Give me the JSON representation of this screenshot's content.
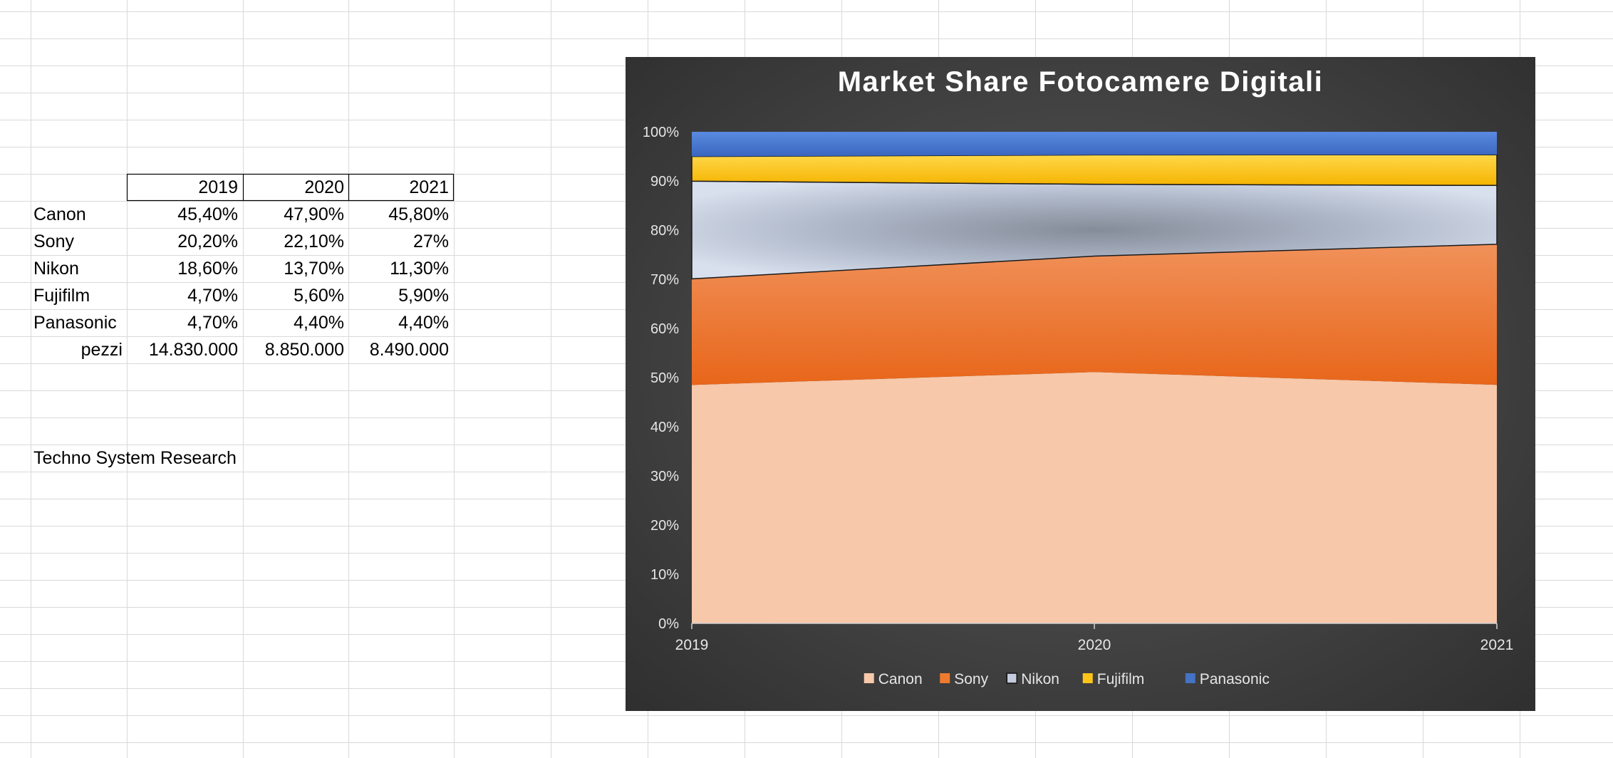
{
  "sheet": {
    "header_years": [
      "2019",
      "2020",
      "2021"
    ],
    "rows": [
      {
        "label": "Canon",
        "values": [
          "45,40%",
          "47,90%",
          "45,80%"
        ]
      },
      {
        "label": "Sony",
        "values": [
          "20,20%",
          "22,10%",
          "27%"
        ]
      },
      {
        "label": "Nikon",
        "values": [
          "18,60%",
          "13,70%",
          "11,30%"
        ]
      },
      {
        "label": "Fujifilm",
        "values": [
          "4,70%",
          "5,60%",
          "5,90%"
        ]
      },
      {
        "label": "Panasonic",
        "values": [
          "4,70%",
          "4,40%",
          "4,40%"
        ]
      }
    ],
    "total_row": {
      "label": "pezzi",
      "values": [
        "14.830.000",
        "8.850.000",
        "8.490.000"
      ]
    },
    "source": "Techno System Research"
  },
  "chart_data": {
    "type": "area",
    "stacking": "percent",
    "title": "Market Share Fotocamere Digitali",
    "x": [
      "2019",
      "2020",
      "2021"
    ],
    "y_ticks": [
      "0%",
      "10%",
      "20%",
      "30%",
      "40%",
      "50%",
      "60%",
      "70%",
      "80%",
      "90%",
      "100%"
    ],
    "ylim": [
      0,
      100
    ],
    "legend_position": "bottom",
    "series": [
      {
        "name": "Canon",
        "values": [
          45.4,
          47.9,
          45.8
        ],
        "color": "#f7c8aa"
      },
      {
        "name": "Sony",
        "values": [
          20.2,
          22.1,
          27
        ],
        "color": "#ee7a2e"
      },
      {
        "name": "Nikon",
        "values": [
          18.6,
          13.7,
          11.3
        ],
        "color": "#c3cbdc"
      },
      {
        "name": "Fujifilm",
        "values": [
          4.7,
          5.6,
          5.9
        ],
        "color": "#ffc518"
      },
      {
        "name": "Panasonic",
        "values": [
          4.7,
          4.4,
          4.4
        ],
        "color": "#4472c4"
      }
    ]
  }
}
